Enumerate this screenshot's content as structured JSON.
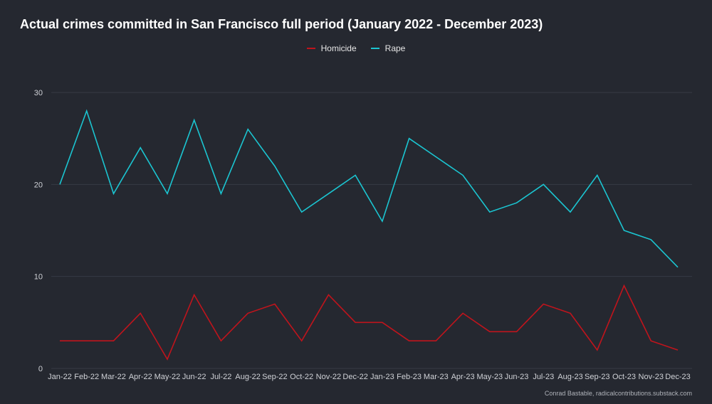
{
  "title": "Actual crimes committed in San Francisco full period (January 2022 - December 2023)",
  "credit": "Conrad Bastable, radicalcontributions.substack.com",
  "colors": {
    "background": "#252830",
    "homicide": "#c0141c",
    "rape": "#1bc5d1",
    "grid": "#363a44"
  },
  "chart_data": {
    "type": "line",
    "title": "Actual crimes committed in San Francisco full period (January 2022 - December 2023)",
    "xlabel": "",
    "ylabel": "",
    "ylim": [
      0,
      30
    ],
    "yticks": [
      0,
      10,
      20,
      30
    ],
    "grid": true,
    "legend_position": "top-center",
    "categories": [
      "Jan-22",
      "Feb-22",
      "Mar-22",
      "Apr-22",
      "May-22",
      "Jun-22",
      "Jul-22",
      "Aug-22",
      "Sep-22",
      "Oct-22",
      "Nov-22",
      "Dec-22",
      "Jan-23",
      "Feb-23",
      "Mar-23",
      "Apr-23",
      "May-23",
      "Jun-23",
      "Jul-23",
      "Aug-23",
      "Sep-23",
      "Oct-23",
      "Nov-23",
      "Dec-23"
    ],
    "series": [
      {
        "name": "Homicide",
        "color": "#c0141c",
        "values": [
          3,
          3,
          3,
          6,
          1,
          8,
          3,
          6,
          7,
          3,
          8,
          5,
          5,
          3,
          3,
          6,
          4,
          4,
          7,
          6,
          2,
          9,
          3,
          2
        ]
      },
      {
        "name": "Rape",
        "color": "#1bc5d1",
        "values": [
          20,
          28,
          19,
          24,
          19,
          27,
          19,
          26,
          22,
          17,
          19,
          21,
          16,
          25,
          23,
          21,
          17,
          18,
          20,
          17,
          21,
          15,
          14,
          11
        ]
      }
    ]
  }
}
